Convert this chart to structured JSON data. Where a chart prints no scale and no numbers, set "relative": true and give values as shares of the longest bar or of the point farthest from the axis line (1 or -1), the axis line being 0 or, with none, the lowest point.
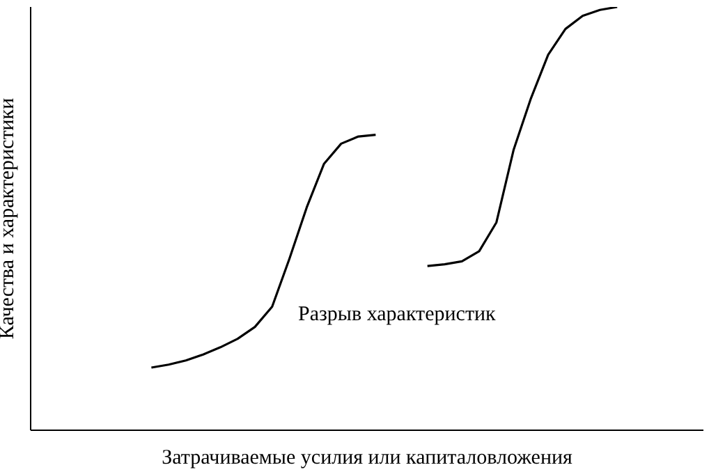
{
  "chart_data": {
    "type": "line",
    "relative": true,
    "xlabel": "Затрачиваемые усилия или капиталовложения",
    "ylabel": "Качества и характеристики",
    "annotations": [
      "Разрыв характеристик"
    ],
    "marker": "none",
    "line_style": "solid",
    "categories": [
      null,
      null,
      null,
      null,
      null,
      null,
      null,
      null,
      null,
      null,
      null,
      null,
      null,
      null,
      null,
      null,
      null,
      null,
      null,
      null,
      null,
      null,
      null,
      null,
      null,
      null,
      null,
      null,
      null,
      null,
      null,
      null,
      null,
      null,
      null,
      null,
      null,
      null,
      null,
      null
    ],
    "series": [
      {
        "color": "#000000",
        "values": [
          null,
          null,
          null,
          null,
          null,
          null,
          null,
          0.148,
          0.155,
          0.165,
          0.179,
          0.196,
          0.216,
          0.244,
          0.292,
          0.405,
          0.526,
          0.629,
          0.677,
          0.694,
          0.698,
          null,
          null,
          null,
          null,
          null,
          null,
          null,
          null,
          null,
          null,
          null,
          null,
          null,
          null,
          null,
          null,
          null,
          null,
          null
        ]
      },
      {
        "color": "#000000",
        "values": [
          null,
          null,
          null,
          null,
          null,
          null,
          null,
          null,
          null,
          null,
          null,
          null,
          null,
          null,
          null,
          null,
          null,
          null,
          null,
          null,
          null,
          null,
          null,
          0.388,
          0.392,
          0.399,
          0.423,
          0.491,
          0.663,
          0.784,
          0.887,
          0.948,
          0.979,
          0.993,
          1,
          null,
          null,
          null,
          null,
          null
        ]
      }
    ]
  }
}
